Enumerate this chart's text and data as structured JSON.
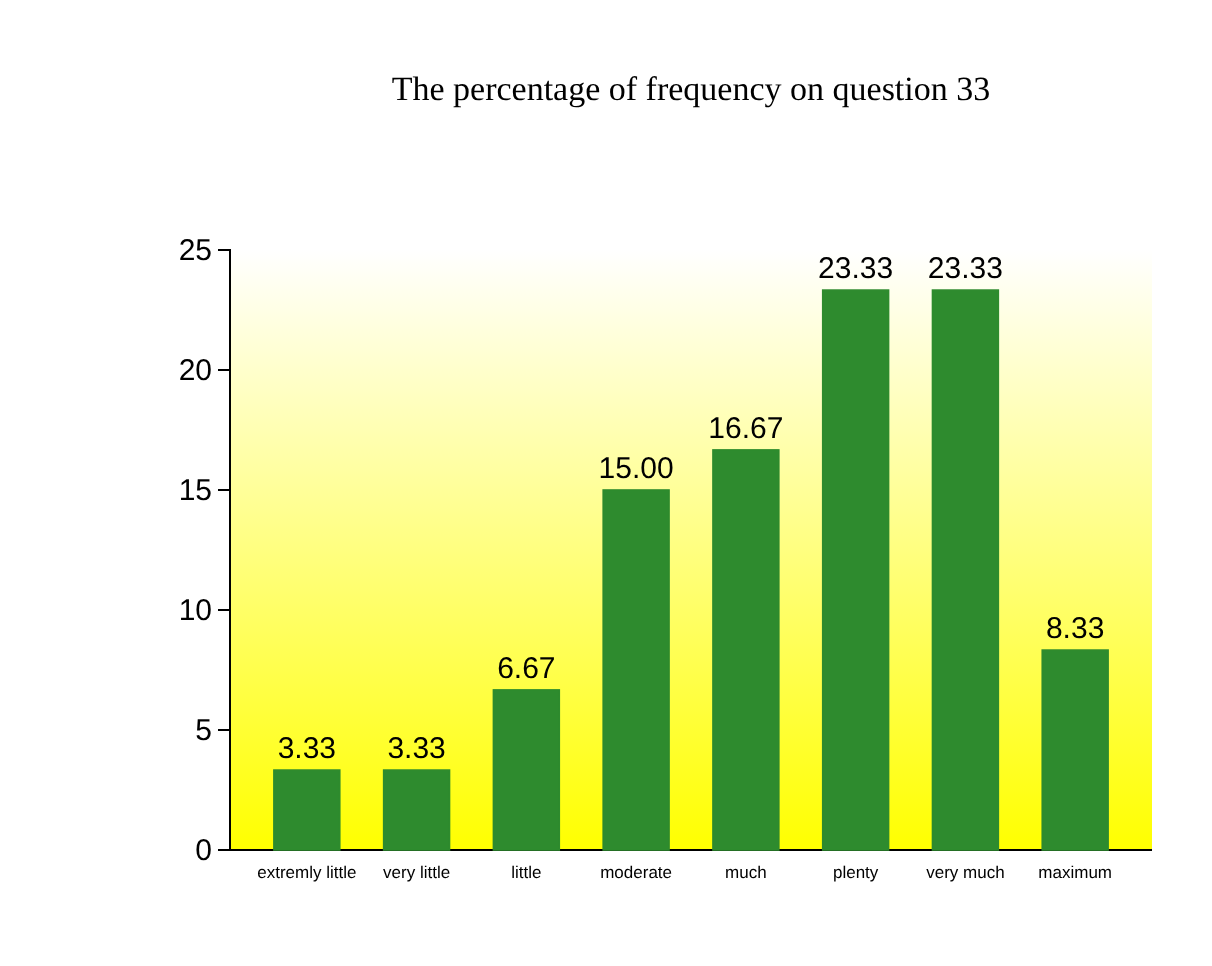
{
  "chart_data": {
    "type": "bar",
    "title": "The percentage of frequency on question 33",
    "categories": [
      "extremly little",
      "very little",
      "little",
      "moderate",
      "much",
      "plenty",
      "very much",
      "maximum"
    ],
    "values": [
      3.33,
      3.33,
      6.67,
      15.0,
      16.67,
      23.33,
      23.33,
      8.33
    ],
    "value_labels": [
      "3.33",
      "3.33",
      "6.67",
      "15.00",
      "16.67",
      "23.33",
      "23.33",
      "8.33"
    ],
    "color": "#2e8b2e",
    "ylim": [
      0,
      25
    ],
    "yticks": [
      0,
      5,
      10,
      15,
      20,
      25
    ],
    "grid": false
  }
}
